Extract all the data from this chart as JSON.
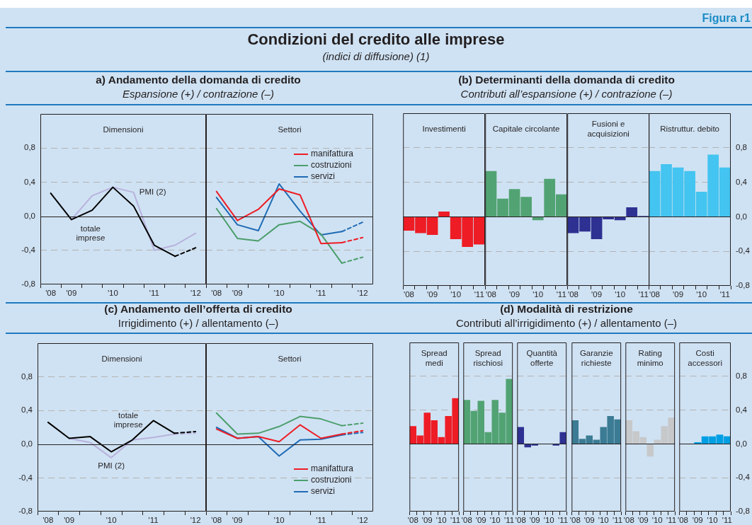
{
  "chart_data": [
    {
      "type": "line",
      "title": "Dimensioni",
      "annotations": [
        "Figura r1",
        "Condizioni del credito alle imprese",
        "(indici di diffusione) (1)",
        "a) Andamento della domanda di credito",
        "Espansione (+) / contrazione (–)"
      ],
      "categories": [
        "'08",
        "'09",
        null,
        "'10",
        null,
        "'11",
        null,
        "'12"
      ],
      "ylim": [
        -0.8,
        1.2
      ],
      "yticks": [
        {
          "value": -0.8,
          "label": "-0,8"
        },
        {
          "value": -0.4,
          "label": "-0,4"
        },
        {
          "value": 0,
          "label": "0,0"
        },
        {
          "value": 0.4,
          "label": "0,4"
        },
        {
          "value": 0.8,
          "label": "0,8"
        }
      ],
      "grid": "y",
      "legend": false,
      "series": [
        {
          "name": "totale imprese",
          "color": "#000000",
          "values": [
            0.27,
            -0.04,
            0.07,
            0.34,
            0.12,
            -0.34,
            -0.47,
            null
          ]
        },
        {
          "color": "#000000",
          "line_style": "dashed",
          "values": [
            null,
            null,
            null,
            null,
            null,
            null,
            -0.47,
            -0.37
          ]
        },
        {
          "name": "PMI (2)",
          "color": "#b8b2dd",
          "values": [
            null,
            -0.04,
            0.24,
            0.34,
            0.28,
            -0.4,
            -0.34,
            -0.2
          ]
        }
      ]
    },
    {
      "type": "line",
      "title": "Settori",
      "categories": [
        "'08",
        "'09",
        null,
        "'10",
        null,
        "'11",
        null,
        "'12"
      ],
      "ylim": [
        -0.8,
        1.2
      ],
      "yticks": [
        -0.8,
        -0.4,
        0,
        0.4,
        0.8
      ],
      "grid": "y",
      "legend": "top right",
      "tick_labels": "x",
      "series": [
        {
          "name": "manifattura",
          "color": "#ee1c25",
          "values": [
            0.29,
            -0.05,
            0.08,
            0.32,
            0.25,
            -0.32,
            -0.31,
            null
          ]
        },
        {
          "color": "#ee1c25",
          "line_style": "dashed",
          "values": [
            null,
            null,
            null,
            null,
            null,
            null,
            -0.31,
            -0.25
          ]
        },
        {
          "name": "costruzioni",
          "color": "#4c9e6c",
          "values": [
            0.09,
            -0.26,
            -0.29,
            -0.1,
            -0.06,
            -0.21,
            -0.55,
            null
          ]
        },
        {
          "color": "#4c9e6c",
          "line_style": "dashed",
          "values": [
            null,
            null,
            null,
            null,
            null,
            null,
            -0.55,
            -0.48
          ]
        },
        {
          "name": "servizi",
          "color": "#1f6bb5",
          "values": [
            0.22,
            -0.1,
            -0.17,
            0.38,
            0.06,
            -0.22,
            -0.18,
            null
          ]
        },
        {
          "color": "#1f6bb5",
          "line_style": "dashed",
          "values": [
            null,
            null,
            null,
            null,
            null,
            null,
            -0.18,
            -0.07
          ]
        }
      ]
    },
    {
      "type": "bar",
      "title": "Investimenti",
      "annotations": [
        "(b) Determinanti della domanda di credito",
        "Contributi all’espansione (+) / contrazione (–)"
      ],
      "categories": [
        "'08",
        null,
        "'09",
        null,
        "'10",
        null,
        "'11"
      ],
      "values": [
        -0.16,
        -0.19,
        -0.21,
        0.06,
        -0.26,
        -0.35,
        -0.32
      ],
      "color": "#ee1c25",
      "ylim": [
        -0.8,
        1.2
      ],
      "yticks": [
        -0.8,
        -0.4,
        0,
        0.4,
        0.8
      ],
      "grid": "y",
      "tick_labels": "x"
    },
    {
      "type": "bar",
      "title": "Capitale circolante",
      "categories": [
        "'08",
        null,
        "'09",
        null,
        "'10",
        null,
        "'11"
      ],
      "values": [
        0.53,
        0.21,
        0.32,
        0.23,
        -0.04,
        0.44,
        0.26
      ],
      "color": "#52a373",
      "ylim": [
        -0.8,
        1.2
      ],
      "yticks": [
        -0.8,
        -0.4,
        0,
        0.4,
        0.8
      ],
      "grid": "y",
      "tick_labels": "x"
    },
    {
      "type": "bar",
      "title": "Fusioni e acquisizioni",
      "categories": [
        "'08",
        null,
        "'09",
        null,
        "'10",
        null,
        "'11"
      ],
      "values": [
        -0.19,
        -0.17,
        -0.26,
        -0.03,
        -0.04,
        0.11,
        0.01
      ],
      "color": "#2e3192",
      "ylim": [
        -0.8,
        1.2
      ],
      "yticks": [
        -0.8,
        -0.4,
        0,
        0.4,
        0.8
      ],
      "grid": "y",
      "tick_labels": "x"
    },
    {
      "type": "bar",
      "title": "Ristruttur. debito",
      "categories": [
        "'08",
        null,
        "'09",
        null,
        "'10",
        null,
        "'11"
      ],
      "values": [
        0.53,
        0.61,
        0.57,
        0.53,
        0.29,
        0.72,
        0.57
      ],
      "color": "#44c4f0",
      "ylim": [
        -0.8,
        1.2
      ],
      "yticks": [
        {
          "value": -0.8,
          "label": "-0,8"
        },
        {
          "value": -0.4,
          "label": "-0,4"
        },
        {
          "value": 0,
          "label": "0,0"
        },
        {
          "value": 0.4,
          "label": "0,4"
        },
        {
          "value": 0.8,
          "label": "0,8"
        }
      ],
      "grid": "y"
    },
    {
      "type": "line",
      "title": "Dimensioni",
      "annotations": [
        "(c) Andamento dell’offerta di credito",
        "Irrigidimento (+) / allentamento (–)"
      ],
      "categories": [
        "'08",
        "'09",
        null,
        "'10",
        null,
        "'11",
        null,
        "'12"
      ],
      "ylim": [
        -0.8,
        1.2
      ],
      "yticks": [
        {
          "value": -0.8,
          "label": "-0,8"
        },
        {
          "value": -0.4,
          "label": "-0,4"
        },
        {
          "value": 0,
          "label": "0,0"
        },
        {
          "value": 0.4,
          "label": "0,4"
        },
        {
          "value": 0.8,
          "label": "0,8"
        }
      ],
      "grid": "y",
      "legend": false,
      "series": [
        {
          "name": "totale imprese",
          "color": "#000000",
          "values": [
            0.26,
            0.07,
            0.09,
            -0.09,
            0.05,
            0.28,
            0.13,
            null
          ]
        },
        {
          "color": "#000000",
          "line_style": "dashed",
          "values": [
            null,
            null,
            null,
            null,
            null,
            null,
            0.13,
            0.15
          ]
        },
        {
          "name": "PMI (2)",
          "color": "#b8b2dd",
          "values": [
            null,
            0.07,
            0.02,
            -0.16,
            0.05,
            0.08,
            0.12,
            null
          ]
        },
        {
          "color": "#b8b2dd",
          "line_style": "dashed",
          "values": [
            null,
            null,
            null,
            null,
            null,
            null,
            0.12,
            0.13
          ]
        }
      ]
    },
    {
      "type": "line",
      "title": "Settori",
      "categories": [
        "'08",
        "'09",
        null,
        "'10",
        null,
        "'11",
        null,
        "'12"
      ],
      "ylim": [
        -0.8,
        1.2
      ],
      "yticks": [
        -0.8,
        -0.4,
        0,
        0.4,
        0.8
      ],
      "grid": "y",
      "legend": "bottom right",
      "tick_labels": "x",
      "series": [
        {
          "name": "manifattura",
          "color": "#ee1c25",
          "values": [
            0.18,
            0.07,
            0.09,
            0.03,
            0.23,
            0.07,
            0.12,
            null
          ]
        },
        {
          "color": "#ee1c25",
          "line_style": "dashed",
          "values": [
            null,
            null,
            null,
            null,
            null,
            null,
            0.12,
            0.16
          ]
        },
        {
          "name": "costruzioni",
          "color": "#4c9e6c",
          "values": [
            0.37,
            0.12,
            0.13,
            0.21,
            0.33,
            0.3,
            0.22,
            null
          ]
        },
        {
          "color": "#4c9e6c",
          "line_style": "dashed",
          "values": [
            null,
            null,
            null,
            null,
            null,
            null,
            0.22,
            0.25
          ]
        },
        {
          "name": "servizi",
          "color": "#1f6bb5",
          "values": [
            0.2,
            0.07,
            0.09,
            -0.14,
            0.05,
            0.06,
            0.11,
            null
          ]
        },
        {
          "color": "#1f6bb5",
          "line_style": "dashed",
          "values": [
            null,
            null,
            null,
            null,
            null,
            null,
            0.11,
            0.14
          ]
        }
      ]
    },
    {
      "type": "bar",
      "title": "Spread medi",
      "annotations": [
        "(d) Modalità di restrizione",
        "Contributi all’irrigidimento (+) / allentamento (–)"
      ],
      "categories": [
        "'08",
        null,
        "'09",
        null,
        "'10",
        null,
        "'11"
      ],
      "values": [
        0.21,
        0.1,
        0.37,
        0.28,
        0.08,
        0.33,
        0.54
      ],
      "color": "#ee1c25",
      "ylim": [
        -0.8,
        1.2
      ],
      "yticks": [
        -0.8,
        -0.4,
        0,
        0.4,
        0.8
      ],
      "grid": "y",
      "tick_labels": "x"
    },
    {
      "type": "bar",
      "title": "Spread rischiosi",
      "categories": [
        "'08",
        null,
        "'09",
        null,
        "'10",
        null,
        "'11"
      ],
      "values": [
        0.52,
        0.39,
        0.51,
        0.14,
        0.52,
        0.37,
        0.77
      ],
      "color": "#52a373",
      "ylim": [
        -0.8,
        1.2
      ],
      "yticks": [
        -0.8,
        -0.4,
        0,
        0.4,
        0.8
      ],
      "grid": "y",
      "tick_labels": "x"
    },
    {
      "type": "bar",
      "title": "Quantità offerte",
      "categories": [
        "'08",
        null,
        "'09",
        null,
        "'10",
        null,
        "'11"
      ],
      "values": [
        0.2,
        -0.04,
        -0.02,
        0,
        0,
        -0.02,
        0.14
      ],
      "color": "#2e3192",
      "ylim": [
        -0.8,
        1.2
      ],
      "yticks": [
        -0.8,
        -0.4,
        0,
        0.4,
        0.8
      ],
      "grid": "y",
      "tick_labels": "x"
    },
    {
      "type": "bar",
      "title": "Garanzie richieste",
      "categories": [
        "'08",
        null,
        "'09",
        null,
        "'10",
        null,
        "'11"
      ],
      "values": [
        0.28,
        0.06,
        0.1,
        0.05,
        0.2,
        0.33,
        0.29
      ],
      "color": "#3b7b93",
      "ylim": [
        -0.8,
        1.2
      ],
      "yticks": [
        -0.8,
        -0.4,
        0,
        0.4,
        0.8
      ],
      "grid": "y",
      "tick_labels": "x"
    },
    {
      "type": "bar",
      "title": "Rating minimo",
      "categories": [
        "'08",
        null,
        "'09",
        null,
        "'10",
        null,
        "'11"
      ],
      "values": [
        0.28,
        0.15,
        0.08,
        -0.15,
        0.05,
        0.21,
        0.31
      ],
      "color": "#c7c8ca",
      "ylim": [
        -0.8,
        1.2
      ],
      "yticks": [
        -0.8,
        -0.4,
        0,
        0.4,
        0.8
      ],
      "grid": "y",
      "tick_labels": "x"
    },
    {
      "type": "bar",
      "title": "Costi accessori",
      "categories": [
        "'08",
        null,
        "'09",
        null,
        "'10",
        null,
        "'11"
      ],
      "values": [
        0,
        0,
        0.02,
        0.09,
        0.09,
        0.11,
        0.09
      ],
      "color": "#009fe3",
      "ylim": [
        -0.8,
        1.2
      ],
      "yticks": [
        {
          "value": -0.8,
          "label": "-0,8"
        },
        {
          "value": -0.4,
          "label": "-0,4"
        },
        {
          "value": 0,
          "label": "0,0"
        },
        {
          "value": 0.4,
          "label": "0,4"
        },
        {
          "value": 0.8,
          "label": "0,8"
        }
      ],
      "grid": "y"
    }
  ]
}
